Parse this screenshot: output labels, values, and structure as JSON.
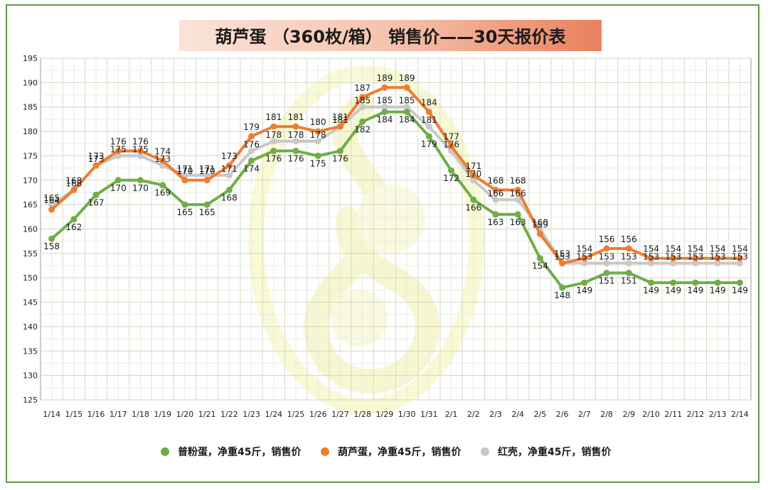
{
  "chart_data": {
    "type": "line",
    "title": "葫芦蛋 （360枚/箱） 销售价——30天报价表",
    "categories": [
      "1/14",
      "1/15",
      "1/16",
      "1/17",
      "1/18",
      "1/19",
      "1/20",
      "1/21",
      "1/22",
      "1/23",
      "1/24",
      "1/25",
      "1/26",
      "1/27",
      "1/28",
      "1/29",
      "1/30",
      "1/31",
      "2/1",
      "2/2",
      "2/3",
      "2/4",
      "2/5",
      "2/6",
      "2/7",
      "2/8",
      "2/9",
      "2/10",
      "2/11",
      "2/12",
      "2/13",
      "2/14"
    ],
    "y_ticks": [
      "125",
      "130",
      "135",
      "140",
      "145",
      "150",
      "155",
      "160",
      "165",
      "170",
      "175",
      "180",
      "185",
      "190",
      "195"
    ],
    "ylim": [
      125,
      195
    ],
    "grid": true,
    "legend_position": "bottom",
    "series": [
      {
        "name": "红壳，净重45斤，销售价",
        "color": "#c8c8c8",
        "values": [
          165,
          168,
          173,
          175,
          175,
          173,
          171,
          171,
          171,
          176,
          178,
          178,
          178,
          181,
          185,
          185,
          185,
          181,
          176,
          170,
          166,
          166,
          160,
          153,
          153,
          153,
          153,
          153,
          153,
          153,
          153,
          153
        ]
      },
      {
        "name": "葫芦蛋，净重45斤，销售价",
        "color": "#ed7d31",
        "values": [
          164,
          168,
          173,
          176,
          176,
          174,
          170,
          170,
          173,
          179,
          181,
          181,
          180,
          181,
          187,
          189,
          189,
          184,
          177,
          171,
          168,
          168,
          159,
          153,
          154,
          156,
          156,
          154,
          154,
          154,
          154,
          154
        ]
      },
      {
        "name": "普粉蛋，净重45斤，销售价",
        "color": "#70ad47",
        "values": [
          158,
          162,
          167,
          170,
          170,
          169,
          165,
          165,
          168,
          174,
          176,
          176,
          175,
          176,
          182,
          184,
          184,
          179,
          172,
          166,
          163,
          163,
          154,
          148,
          149,
          151,
          151,
          149,
          149,
          149,
          149,
          149
        ]
      }
    ],
    "legend_order": [
      2,
      1,
      0
    ]
  }
}
